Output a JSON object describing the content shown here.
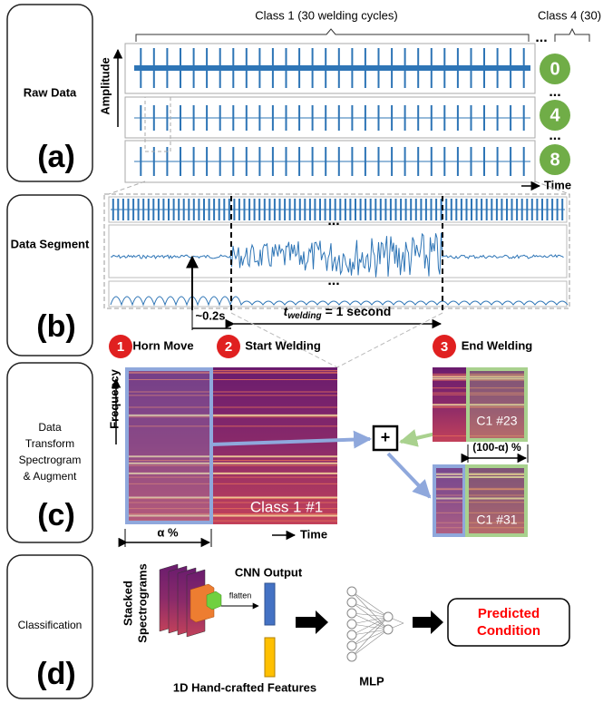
{
  "panels": [
    {
      "label": "Raw Data",
      "tag": "(a)"
    },
    {
      "label": "Data Segment",
      "tag": "(b)"
    },
    {
      "label": [
        "Data",
        "Transform",
        "Spectrogram",
        "& Augment"
      ],
      "tag": "(c)"
    },
    {
      "label": "Classification",
      "tag": "(d)"
    }
  ],
  "raw_data": {
    "class1": "Class 1 (30 welding cycles)",
    "class4": "Class 4 (30)",
    "ellipsis": "...",
    "y_axis": "Amplitude",
    "x_axis": "Time",
    "rows": [
      "0",
      "4",
      "8"
    ]
  },
  "segment": {
    "ellipsis": "...",
    "pre_time": "~0.2s",
    "duration": {
      "symbol": "t",
      "subscript": "welding",
      "text": "= 1 second"
    }
  },
  "steps": [
    {
      "number": "1",
      "label": "Horn Move"
    },
    {
      "number": "2",
      "label": "Start Welding"
    },
    {
      "number": "3",
      "label": "End Welding"
    }
  ],
  "transform": {
    "y_axis": "Frequency",
    "x_axis": "Time",
    "main": "Class 1 #1",
    "alpha": "α %",
    "plus": "+",
    "sample_a": "C1 #23",
    "complement": "(100-α) %",
    "sample_b": "C1 #31"
  },
  "classification": {
    "input": [
      "Stacked",
      "Spectrograms"
    ],
    "flatten": "flatten",
    "cnn": "CNN Output",
    "features": "1D Hand-crafted Features",
    "mlp": "MLP",
    "output": [
      "Predicted",
      "Condition"
    ]
  }
}
